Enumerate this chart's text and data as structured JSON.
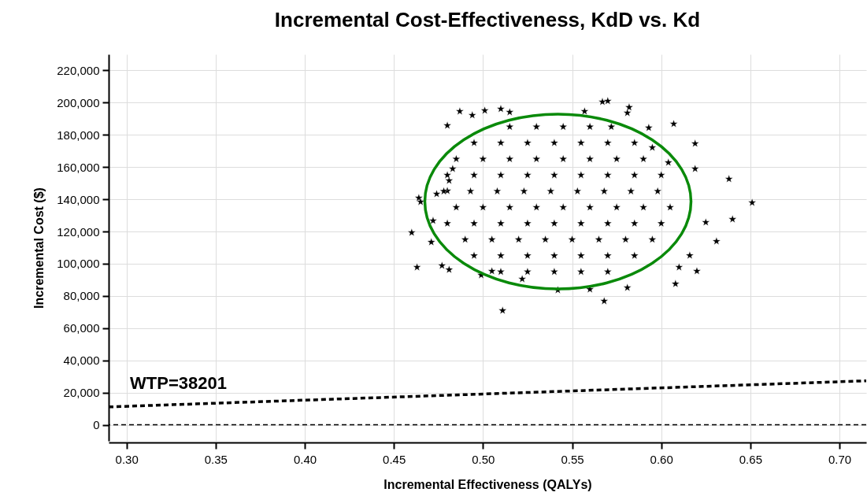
{
  "chart_data": {
    "type": "scatter",
    "title": "Incremental Cost-Effectiveness, KdD vs. Kd",
    "xlabel": "Incremental Effectiveness (QALYs)",
    "ylabel": "Incremental Cost ($)",
    "xlim": [
      0.29,
      0.715
    ],
    "ylim": [
      -10000,
      230000
    ],
    "xticks": [
      {
        "value": 0.3,
        "label": "0.30"
      },
      0.35,
      {
        "value": 0.4,
        "label": "0.40"
      },
      0.45,
      {
        "value": 0.5,
        "label": "0.50"
      },
      0.55,
      {
        "value": 0.6,
        "label": "0.60"
      },
      0.65,
      {
        "value": 0.7,
        "label": "0.70"
      }
    ],
    "yticks": [
      0,
      {
        "value": 20000,
        "label": "20,000"
      },
      {
        "value": 40000,
        "label": "40,000"
      },
      {
        "value": 60000,
        "label": "60,000"
      },
      {
        "value": 80000,
        "label": "80,000"
      },
      {
        "value": 100000,
        "label": "100,000"
      },
      {
        "value": 120000,
        "label": "120,000"
      },
      {
        "value": 140000,
        "label": "140,000"
      },
      {
        "value": 160000,
        "label": "160,000"
      },
      {
        "value": 180000,
        "label": "180,000"
      },
      {
        "value": 200000,
        "label": "200,000"
      },
      {
        "value": 220000,
        "label": "220,000"
      }
    ],
    "grid": true,
    "marker": "star",
    "series": [
      {
        "color": "#000000",
        "x": [
          0.46,
          0.463,
          0.464,
          0.465,
          0.48,
          0.487,
          0.494,
          0.501,
          0.51,
          0.515,
          0.471,
          0.472,
          0.477,
          0.481,
          0.511,
          0.474,
          0.48,
          0.483,
          0.481,
          0.499,
          0.505,
          0.522,
          0.567,
          0.57,
          0.582,
          0.581,
          0.607,
          0.619,
          0.619,
          0.638,
          0.651,
          0.64,
          0.625,
          0.631,
          0.62,
          0.608,
          0.61,
          0.616,
          0.568,
          0.581,
          0.56,
          0.542,
          0.593,
          0.557,
          0.595,
          0.604,
          0.515,
          0.53,
          0.545,
          0.56,
          0.572,
          0.495,
          0.51,
          0.525,
          0.54,
          0.555,
          0.57,
          0.585,
          0.485,
          0.5,
          0.515,
          0.53,
          0.545,
          0.56,
          0.575,
          0.59,
          0.48,
          0.495,
          0.51,
          0.525,
          0.54,
          0.555,
          0.57,
          0.585,
          0.6,
          0.478,
          0.493,
          0.508,
          0.523,
          0.538,
          0.553,
          0.568,
          0.583,
          0.598,
          0.485,
          0.5,
          0.515,
          0.53,
          0.545,
          0.56,
          0.575,
          0.59,
          0.605,
          0.48,
          0.495,
          0.51,
          0.525,
          0.54,
          0.555,
          0.57,
          0.585,
          0.6,
          0.49,
          0.505,
          0.52,
          0.535,
          0.55,
          0.565,
          0.58,
          0.595,
          0.495,
          0.51,
          0.525,
          0.54,
          0.555,
          0.57,
          0.585,
          0.51,
          0.525,
          0.54,
          0.555,
          0.57
        ],
        "values": [
          119300,
          97800,
          140800,
          138400,
          185800,
          194600,
          192200,
          195100,
          196100,
          194100,
          113400,
          126700,
          98800,
          96300,
          70900,
          143300,
          145200,
          158900,
          151600,
          92900,
          95400,
          90500,
          200500,
          201000,
          197100,
          193600,
          186800,
          174600,
          158900,
          152600,
          137900,
          127600,
          125700,
          113900,
          95400,
          87500,
          97800,
          105100,
          76800,
          85100,
          84100,
          83600,
          184400,
          194600,
          172100,
          162800,
          185000,
          185000,
          185000,
          185000,
          185000,
          175000,
          175000,
          175000,
          175000,
          175000,
          175000,
          175000,
          165000,
          165000,
          165000,
          165000,
          165000,
          165000,
          165000,
          165000,
          155000,
          155000,
          155000,
          155000,
          155000,
          155000,
          155000,
          155000,
          155000,
          145000,
          145000,
          145000,
          145000,
          145000,
          145000,
          145000,
          145000,
          145000,
          135000,
          135000,
          135000,
          135000,
          135000,
          135000,
          135000,
          135000,
          135000,
          125000,
          125000,
          125000,
          125000,
          125000,
          125000,
          125000,
          125000,
          125000,
          115000,
          115000,
          115000,
          115000,
          115000,
          115000,
          115000,
          115000,
          105000,
          105000,
          105000,
          105000,
          105000,
          105000,
          105000,
          95000,
          95000,
          95000,
          95000,
          95000
        ]
      },
      {
        "type": "line",
        "color": "#000000",
        "line_style": "dashed",
        "marker": "none",
        "x": [
          0.29,
          0.715
        ],
        "values": [
          11100,
          27300
        ]
      }
    ],
    "ref_lines": [
      {
        "axis": "y",
        "value": 0,
        "color": "#000000",
        "line_style": "dashed"
      }
    ],
    "annotations": [
      "WTP=38201"
    ]
  }
}
